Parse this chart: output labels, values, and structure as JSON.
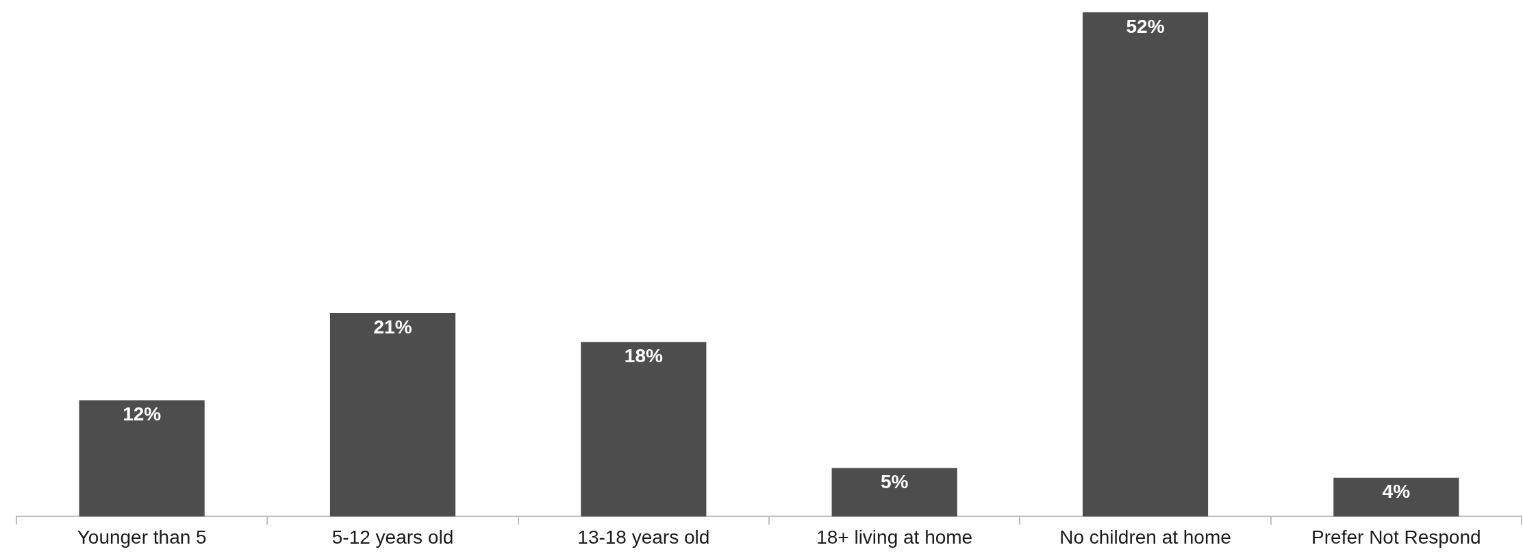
{
  "chart_data": {
    "type": "bar",
    "categories": [
      "Younger than 5",
      "5-12 years old",
      "13-18 years old",
      "18+ living at home",
      "No children at home",
      "Prefer Not Respond"
    ],
    "values": [
      12,
      21,
      18,
      5,
      52,
      4
    ],
    "value_labels": [
      "12%",
      "21%",
      "18%",
      "5%",
      "52%",
      "4%"
    ],
    "color": "#4d4d4d",
    "grid": false,
    "legend": false
  }
}
